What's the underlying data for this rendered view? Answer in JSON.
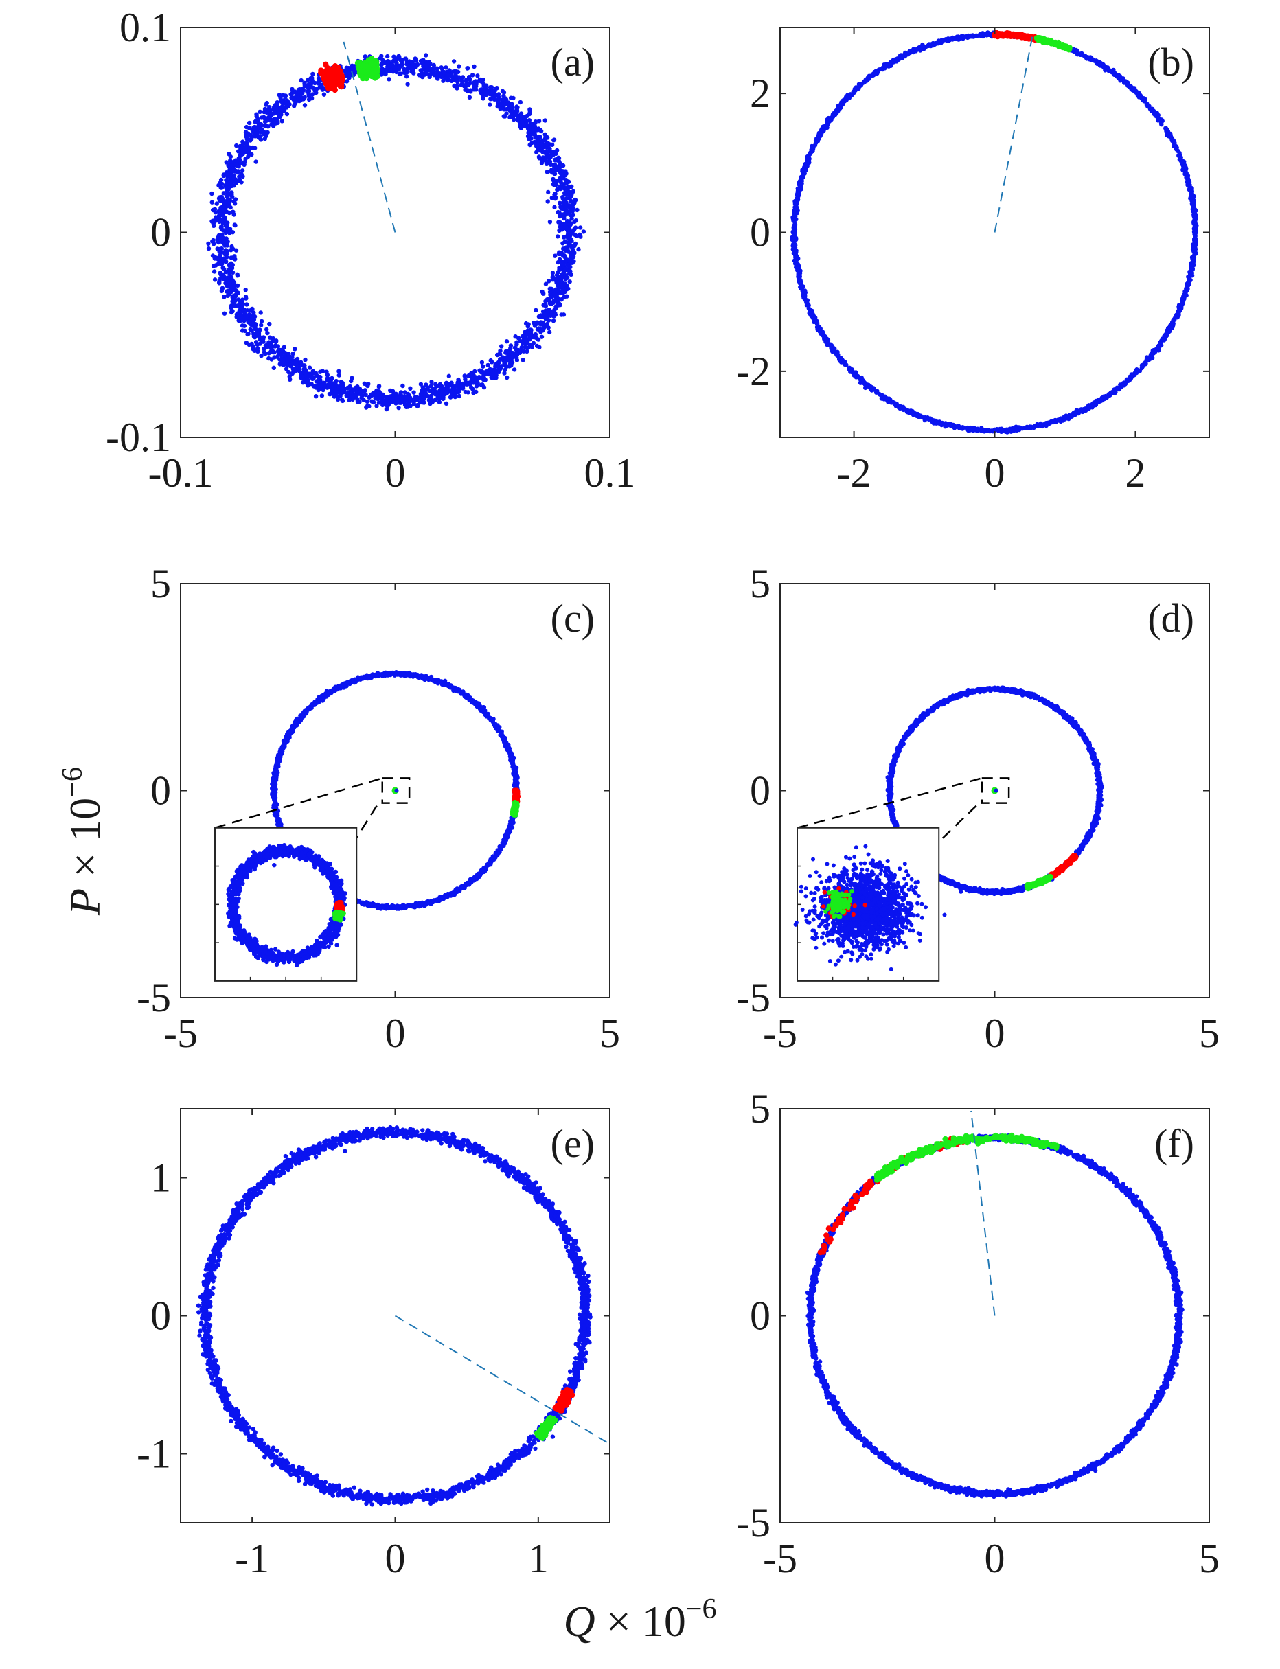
{
  "figure": {
    "ylabel": {
      "var": "P",
      "rest": " × 10",
      "exp": "−6"
    },
    "xlabel": {
      "var": "Q",
      "rest": " × 10",
      "exp": "−6"
    }
  },
  "colors": {
    "ring": "#0a14f0",
    "red": "#ff0000",
    "green": "#1aeb1a",
    "dash": "#1f77b4",
    "axes": "#262626"
  },
  "chart_data": [
    {
      "id": "a",
      "type": "scatter",
      "panel_label": "(a)",
      "xlim": [
        -0.1,
        0.1
      ],
      "ylim": [
        -0.1,
        0.1
      ],
      "xticks": [
        -0.1,
        0,
        0.1
      ],
      "xtick_labels": [
        "-0.1",
        "0",
        "0.1"
      ],
      "yticks": [
        -0.1,
        0,
        0.1
      ],
      "ytick_labels": [
        "-0.1",
        "0",
        "0.1"
      ],
      "series": [
        {
          "kind": "ring",
          "color": "blue",
          "radius": 0.081,
          "center": [
            0,
            0
          ],
          "spread": 0.0025,
          "n": 2600
        },
        {
          "kind": "arc",
          "color": "red",
          "radius": 0.081,
          "from_deg": 108,
          "to_deg": 114,
          "spread": 0.002,
          "n": 220
        },
        {
          "kind": "arc",
          "color": "green",
          "radius": 0.081,
          "from_deg": 96,
          "to_deg": 102,
          "spread": 0.002,
          "n": 220
        },
        {
          "kind": "dashed",
          "x": [
            0,
            -0.024
          ],
          "y": [
            0,
            0.093
          ]
        }
      ]
    },
    {
      "id": "b",
      "type": "scatter",
      "panel_label": "(b)",
      "xlim": [
        -3.05,
        3.05
      ],
      "ylim": [
        -2.95,
        2.95
      ],
      "xticks": [
        -2,
        0,
        2
      ],
      "xtick_labels": [
        "-2",
        "0",
        "2"
      ],
      "yticks": [
        -2,
        0,
        2
      ],
      "ytick_labels": [
        "-2",
        "0",
        "2"
      ],
      "series": [
        {
          "kind": "ring",
          "color": "blue",
          "radius": 2.85,
          "center": [
            0,
            0
          ],
          "spread": 0.012,
          "n": 2200
        },
        {
          "kind": "arc",
          "color": "red",
          "radius": 2.85,
          "from_deg": 78,
          "to_deg": 90,
          "spread": 0.01,
          "n": 160
        },
        {
          "kind": "arc",
          "color": "green",
          "radius": 2.85,
          "from_deg": 68,
          "to_deg": 78,
          "spread": 0.01,
          "n": 160
        },
        {
          "kind": "dashed",
          "x": [
            0,
            0.55
          ],
          "y": [
            0,
            2.9
          ]
        }
      ]
    },
    {
      "id": "c",
      "type": "scatter",
      "panel_label": "(c)",
      "xlim": [
        -5,
        5
      ],
      "ylim": [
        -5,
        5
      ],
      "xticks": [
        -5,
        0,
        5
      ],
      "xtick_labels": [
        "-5",
        "0",
        "5"
      ],
      "yticks": [
        -5,
        0,
        5
      ],
      "ytick_labels": [
        "-5",
        "0",
        "5"
      ],
      "series": [
        {
          "kind": "ring",
          "color": "blue",
          "radius": 2.82,
          "center": [
            0,
            0
          ],
          "spread": 0.02,
          "n": 2000
        },
        {
          "kind": "arc",
          "color": "red",
          "radius": 2.82,
          "from_deg": -6,
          "to_deg": 0,
          "spread": 0.015,
          "n": 80
        },
        {
          "kind": "arc",
          "color": "green",
          "radius": 2.82,
          "from_deg": -12,
          "to_deg": -6,
          "spread": 0.015,
          "n": 80
        },
        {
          "kind": "dot",
          "center": [
            0,
            0
          ]
        }
      ],
      "inset": {
        "zoom_box": [
          -0.5,
          0.5,
          -0.5,
          0.5
        ],
        "box_xlim": [
          -4.2,
          -0.9
        ],
        "box_ylim": [
          -4.6,
          -0.9
        ],
        "content": "ring"
      }
    },
    {
      "id": "d",
      "type": "scatter",
      "panel_label": "(d)",
      "xlim": [
        -5,
        5
      ],
      "ylim": [
        -5,
        5
      ],
      "xticks": [
        -5,
        0,
        5
      ],
      "xtick_labels": [
        "-5",
        "0",
        "5"
      ],
      "yticks": [
        -5,
        0,
        5
      ],
      "ytick_labels": [
        "-5",
        "0",
        "5"
      ],
      "series": [
        {
          "kind": "ring",
          "color": "blue",
          "radius": 2.45,
          "center": [
            0,
            0
          ],
          "spread": 0.02,
          "n": 1800
        },
        {
          "kind": "arc",
          "color": "red",
          "radius": 2.45,
          "from_deg": -58,
          "to_deg": -40,
          "spread": 0.015,
          "n": 120
        },
        {
          "kind": "arc",
          "color": "green",
          "radius": 2.45,
          "from_deg": -72,
          "to_deg": -58,
          "spread": 0.015,
          "n": 120
        },
        {
          "kind": "dot",
          "center": [
            0,
            0
          ]
        }
      ],
      "inset": {
        "zoom_box": [
          -0.5,
          0.5,
          -0.5,
          0.5
        ],
        "box_xlim": [
          -4.6,
          -1.3
        ],
        "box_ylim": [
          -4.6,
          -0.9
        ],
        "content": "cloud"
      }
    },
    {
      "id": "e",
      "type": "scatter",
      "panel_label": "(e)",
      "xlim": [
        -1.5,
        1.5
      ],
      "ylim": [
        -1.5,
        1.5
      ],
      "xticks": [
        -1,
        0,
        1
      ],
      "xtick_labels": [
        "-1",
        "0",
        "1"
      ],
      "yticks": [
        -1,
        0,
        1
      ],
      "ytick_labels": [
        "-1",
        "0",
        "1"
      ],
      "series": [
        {
          "kind": "ring",
          "color": "blue",
          "radius": 1.33,
          "center": [
            0,
            0
          ],
          "spread": 0.018,
          "n": 2600
        },
        {
          "kind": "arc",
          "color": "red",
          "radius": 1.33,
          "from_deg": -31,
          "to_deg": -24,
          "spread": 0.012,
          "n": 160
        },
        {
          "kind": "arc",
          "color": "green",
          "radius": 1.33,
          "from_deg": -41,
          "to_deg": -34,
          "spread": 0.012,
          "n": 160
        },
        {
          "kind": "dashed",
          "x": [
            0,
            1.5
          ],
          "y": [
            0,
            -0.93
          ]
        }
      ]
    },
    {
      "id": "f",
      "type": "scatter",
      "panel_label": "(f)",
      "xlim": [
        -5,
        5
      ],
      "ylim": [
        -5,
        5
      ],
      "xticks": [
        -5,
        0,
        5
      ],
      "xtick_labels": [
        "-5",
        "0",
        "5"
      ],
      "yticks": [
        -5,
        0,
        5
      ],
      "ytick_labels": [
        "-5",
        "0",
        "5"
      ],
      "series": [
        {
          "kind": "ring",
          "color": "blue",
          "radius": 4.3,
          "center": [
            0,
            0
          ],
          "spread": 0.03,
          "n": 2600
        },
        {
          "kind": "arc",
          "color": "red",
          "radius": 4.3,
          "from_deg": 100,
          "to_deg": 160,
          "spread": 0.04,
          "n": 90
        },
        {
          "kind": "arc",
          "color": "green",
          "radius": 4.3,
          "from_deg": 70,
          "to_deg": 130,
          "spread": 0.04,
          "n": 260
        },
        {
          "kind": "dashed",
          "x": [
            0,
            -0.55
          ],
          "y": [
            0,
            4.95
          ]
        }
      ]
    }
  ]
}
